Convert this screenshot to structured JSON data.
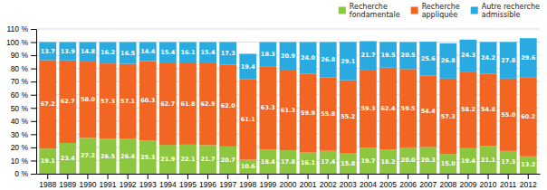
{
  "chart_data": {
    "type": "bar",
    "stacked": true,
    "categories": [
      "1988",
      "1989",
      "1990",
      "1991",
      "1992",
      "1993",
      "1994",
      "1995",
      "1996",
      "1997",
      "1998",
      "1999",
      "2000",
      "2001",
      "2002",
      "2003",
      "2004",
      "2005",
      "2006",
      "2007",
      "2008",
      "2009",
      "2010",
      "2011",
      "2012"
    ],
    "series": [
      {
        "name": "Recherche\nfondamentale",
        "color": "#8DC63F",
        "values": [
          19.1,
          23.4,
          27.2,
          26.5,
          26.4,
          25.3,
          21.9,
          22.1,
          21.7,
          20.7,
          10.6,
          18.4,
          17.8,
          16.1,
          17.4,
          15.8,
          19.7,
          18.2,
          20.0,
          20.3,
          15.0,
          19.4,
          21.1,
          17.3,
          13.2
        ],
        "value_labels": [
          "19.1",
          "23.4",
          "27.2",
          "26.5",
          "26.4",
          "25.3",
          "21.9",
          "22.1",
          "21.7",
          "20.7",
          "10.6",
          "18.4",
          "17.8",
          "16.1",
          "17.4",
          "15.8",
          "19.7",
          "18.2",
          "20.0",
          "20.3",
          "15.0",
          "19.4",
          "21.1",
          "17.3",
          "13.2"
        ]
      },
      {
        "name": "Recherche\nappliquée",
        "color": "#F26522",
        "values": [
          67.2,
          62.7,
          58.0,
          57.3,
          57.1,
          60.3,
          62.7,
          61.8,
          62.9,
          62.0,
          61.1,
          63.3,
          61.3,
          59.9,
          55.8,
          55.2,
          59.3,
          62.4,
          59.5,
          54.4,
          57.3,
          58.2,
          54.8,
          55.0,
          60.2
        ],
        "value_labels": [
          "67.2",
          "62.7",
          "58.0",
          "57.3",
          "57.1",
          "60.3",
          "62.7",
          "61.8",
          "62.9",
          "62.0",
          "61.1",
          "63.3",
          "61.3",
          "59.9",
          "55.8",
          "55.2",
          "59.3",
          "62.4",
          "59.5",
          "54.4",
          "57.3",
          "58.2",
          "54.8",
          "55.0",
          "60.2"
        ]
      },
      {
        "name": "Autre recherche\nadmissible",
        "color": "#29ABE2",
        "values": [
          13.7,
          13.9,
          14.8,
          16.2,
          16.5,
          14.4,
          15.4,
          16.1,
          15.4,
          17.3,
          19.4,
          18.3,
          20.9,
          24.0,
          26.8,
          29.1,
          21.7,
          19.5,
          20.5,
          25.6,
          26.8,
          24.3,
          24.2,
          27.8,
          29.6
        ],
        "value_labels": [
          "13.7",
          "13.9",
          "14.8",
          "16.2",
          "16.5",
          "14.4",
          "15.4",
          "16.1",
          "15.4",
          "17.3",
          "19.4",
          "18.3",
          "20.9",
          "24.0",
          "26.8",
          "29.1",
          "21.7",
          "19.5",
          "20.5",
          "25.6",
          "26.8",
          "24.3",
          "24.2",
          "27.8",
          "29.6"
        ]
      }
    ],
    "ylim": [
      0,
      110
    ],
    "yticks": [
      {
        "value": 0,
        "label": "0 %"
      },
      {
        "value": 10,
        "label": "10 %"
      },
      {
        "value": 20,
        "label": "20 %"
      },
      {
        "value": 30,
        "label": "30 %"
      },
      {
        "value": 40,
        "label": "40 %"
      },
      {
        "value": 50,
        "label": "50 %"
      },
      {
        "value": 60,
        "label": "60 %"
      },
      {
        "value": 70,
        "label": "70 %"
      },
      {
        "value": 80,
        "label": "80 %"
      },
      {
        "value": 90,
        "label": "90 %"
      },
      {
        "value": 100,
        "label": "100 %"
      },
      {
        "value": 110,
        "label": "110 %"
      }
    ],
    "grid": true,
    "legend": "top-right",
    "data_labels": true
  }
}
